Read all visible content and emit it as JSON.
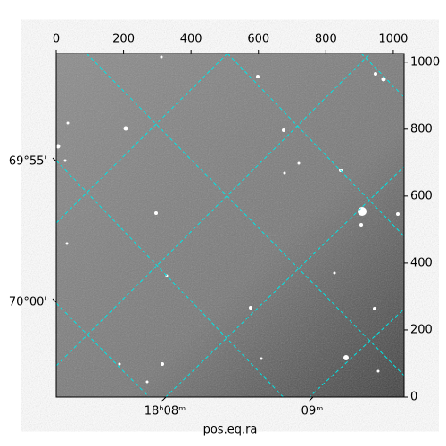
{
  "chart_data": {
    "type": "image",
    "xlabel": "pos.eq.ra",
    "xlim": [
      0,
      1032
    ],
    "xticks": [
      0,
      200,
      400,
      600,
      800,
      1000
    ],
    "ylim": [
      0,
      1026
    ],
    "yticks": [
      0,
      200,
      400,
      600,
      800,
      1000
    ],
    "ra_labels": [
      "18ʰ08ᵐ",
      "09ᵐ"
    ],
    "dec_labels": [
      "69°55'",
      "70°00'"
    ]
  }
}
